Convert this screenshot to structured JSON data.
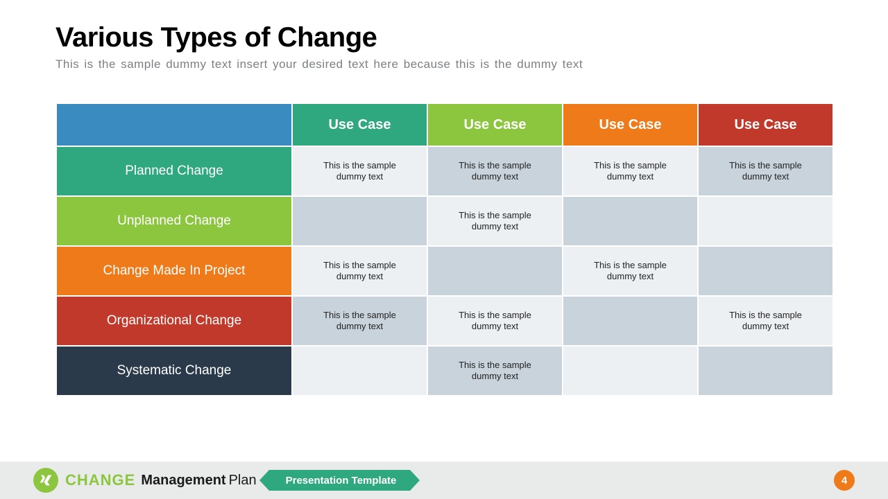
{
  "title": "Various Types of Change",
  "subtitle": "This is the sample dummy  text insert your desired text here because this is the dummy  text",
  "table": {
    "corner_bg": "#3a8bbf",
    "columns": [
      {
        "label": "Use Case",
        "bg": "#2fa77f"
      },
      {
        "label": "Use Case",
        "bg": "#8cc63f"
      },
      {
        "label": "Use Case",
        "bg": "#ef7a1a"
      },
      {
        "label": "Use Case",
        "bg": "#c1392b"
      }
    ],
    "rows": [
      {
        "label": "Planned Change",
        "bg": "#2fa77f",
        "cells": [
          "This is the sample dummy text",
          "This is the sample dummy text",
          "This is the sample dummy text",
          "This is the sample dummy text"
        ]
      },
      {
        "label": "Unplanned Change",
        "bg": "#8cc63f",
        "cells": [
          "",
          "This is the sample dummy text",
          "",
          ""
        ]
      },
      {
        "label": "Change Made In Project",
        "bg": "#ef7a1a",
        "cells": [
          "This is the sample dummy text",
          "",
          "This is the sample dummy text",
          ""
        ]
      },
      {
        "label": "Organizational Change",
        "bg": "#c1392b",
        "cells": [
          "This is the sample dummy text",
          "This is the sample dummy text",
          "",
          "This is the sample dummy text"
        ]
      },
      {
        "label": "Systematic Change",
        "bg": "#2b3a4a",
        "cells": [
          "",
          "This is the sample dummy text",
          "",
          ""
        ]
      }
    ],
    "body_bg_light": "#edf0f3",
    "body_bg_dark": "#c9d3db"
  },
  "footer": {
    "brand": "CHANGE",
    "sub_bold": "Management",
    "sub_light": "Plan",
    "ribbon": "Presentation Template",
    "logo_bg": "#8cc63f",
    "ribbon_bg": "#2fa77f",
    "page_bg": "#ef7a1a",
    "page": "4"
  }
}
